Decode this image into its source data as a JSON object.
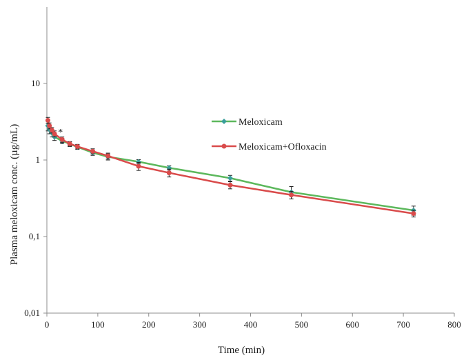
{
  "chart_data": {
    "type": "line",
    "xlabel": "Time (min)",
    "ylabel": "Plasma  meloxicam conc. (µg/mL)",
    "xlim": [
      0,
      800
    ],
    "ylim": [
      0.01,
      100
    ],
    "yscale": "log",
    "x_ticks": [
      0,
      100,
      200,
      300,
      400,
      500,
      600,
      700,
      800
    ],
    "x_tick_labels": [
      "0",
      "100",
      "200",
      "300",
      "400",
      "500",
      "600",
      "700",
      "800"
    ],
    "y_ticks": [
      0.01,
      0.1,
      1,
      10
    ],
    "y_tick_labels": [
      "0,01",
      "0,1",
      "1",
      "10"
    ],
    "grid": false,
    "legend_position": "right",
    "annotations": [
      {
        "text": "*",
        "x": 22,
        "y": 2.3
      }
    ],
    "series": [
      {
        "name": "Meloxicam",
        "color": "#5cb85c",
        "marker_color": "#3a9e9a",
        "marker": "diamond",
        "points": [
          {
            "x": 2,
            "y": 2.8,
            "err": 0.4
          },
          {
            "x": 5,
            "y": 2.5,
            "err": 0.3
          },
          {
            "x": 10,
            "y": 2.25,
            "err": 0.25
          },
          {
            "x": 15,
            "y": 2.0,
            "err": 0.2
          },
          {
            "x": 30,
            "y": 1.78,
            "err": 0.15
          },
          {
            "x": 45,
            "y": 1.62,
            "err": 0.12
          },
          {
            "x": 60,
            "y": 1.48,
            "err": 0.1
          },
          {
            "x": 90,
            "y": 1.25,
            "err": 0.1
          },
          {
            "x": 120,
            "y": 1.1,
            "err": 0.1
          },
          {
            "x": 180,
            "y": 0.95,
            "err": 0.06
          },
          {
            "x": 240,
            "y": 0.79,
            "err": 0.05
          },
          {
            "x": 360,
            "y": 0.58,
            "err": 0.05
          },
          {
            "x": 480,
            "y": 0.38,
            "err": 0.07
          },
          {
            "x": 720,
            "y": 0.22,
            "err": 0.03
          }
        ]
      },
      {
        "name": "Meloxicam+Ofloxacin",
        "color": "#d94b4b",
        "marker_color": "#d94b4b",
        "marker": "circle",
        "points": [
          {
            "x": 2,
            "y": 3.3,
            "err": 0.3
          },
          {
            "x": 5,
            "y": 2.8,
            "err": 0.25
          },
          {
            "x": 10,
            "y": 2.45,
            "err": 0.2
          },
          {
            "x": 15,
            "y": 2.2,
            "err": 0.2
          },
          {
            "x": 30,
            "y": 1.85,
            "err": 0.15
          },
          {
            "x": 45,
            "y": 1.63,
            "err": 0.1
          },
          {
            "x": 60,
            "y": 1.5,
            "err": 0.1
          },
          {
            "x": 90,
            "y": 1.3,
            "err": 0.1
          },
          {
            "x": 120,
            "y": 1.13,
            "err": 0.1
          },
          {
            "x": 180,
            "y": 0.83,
            "err": 0.1
          },
          {
            "x": 240,
            "y": 0.68,
            "err": 0.08
          },
          {
            "x": 360,
            "y": 0.47,
            "err": 0.05
          },
          {
            "x": 480,
            "y": 0.35,
            "err": 0.04
          },
          {
            "x": 720,
            "y": 0.2,
            "err": 0.02
          }
        ]
      }
    ]
  }
}
